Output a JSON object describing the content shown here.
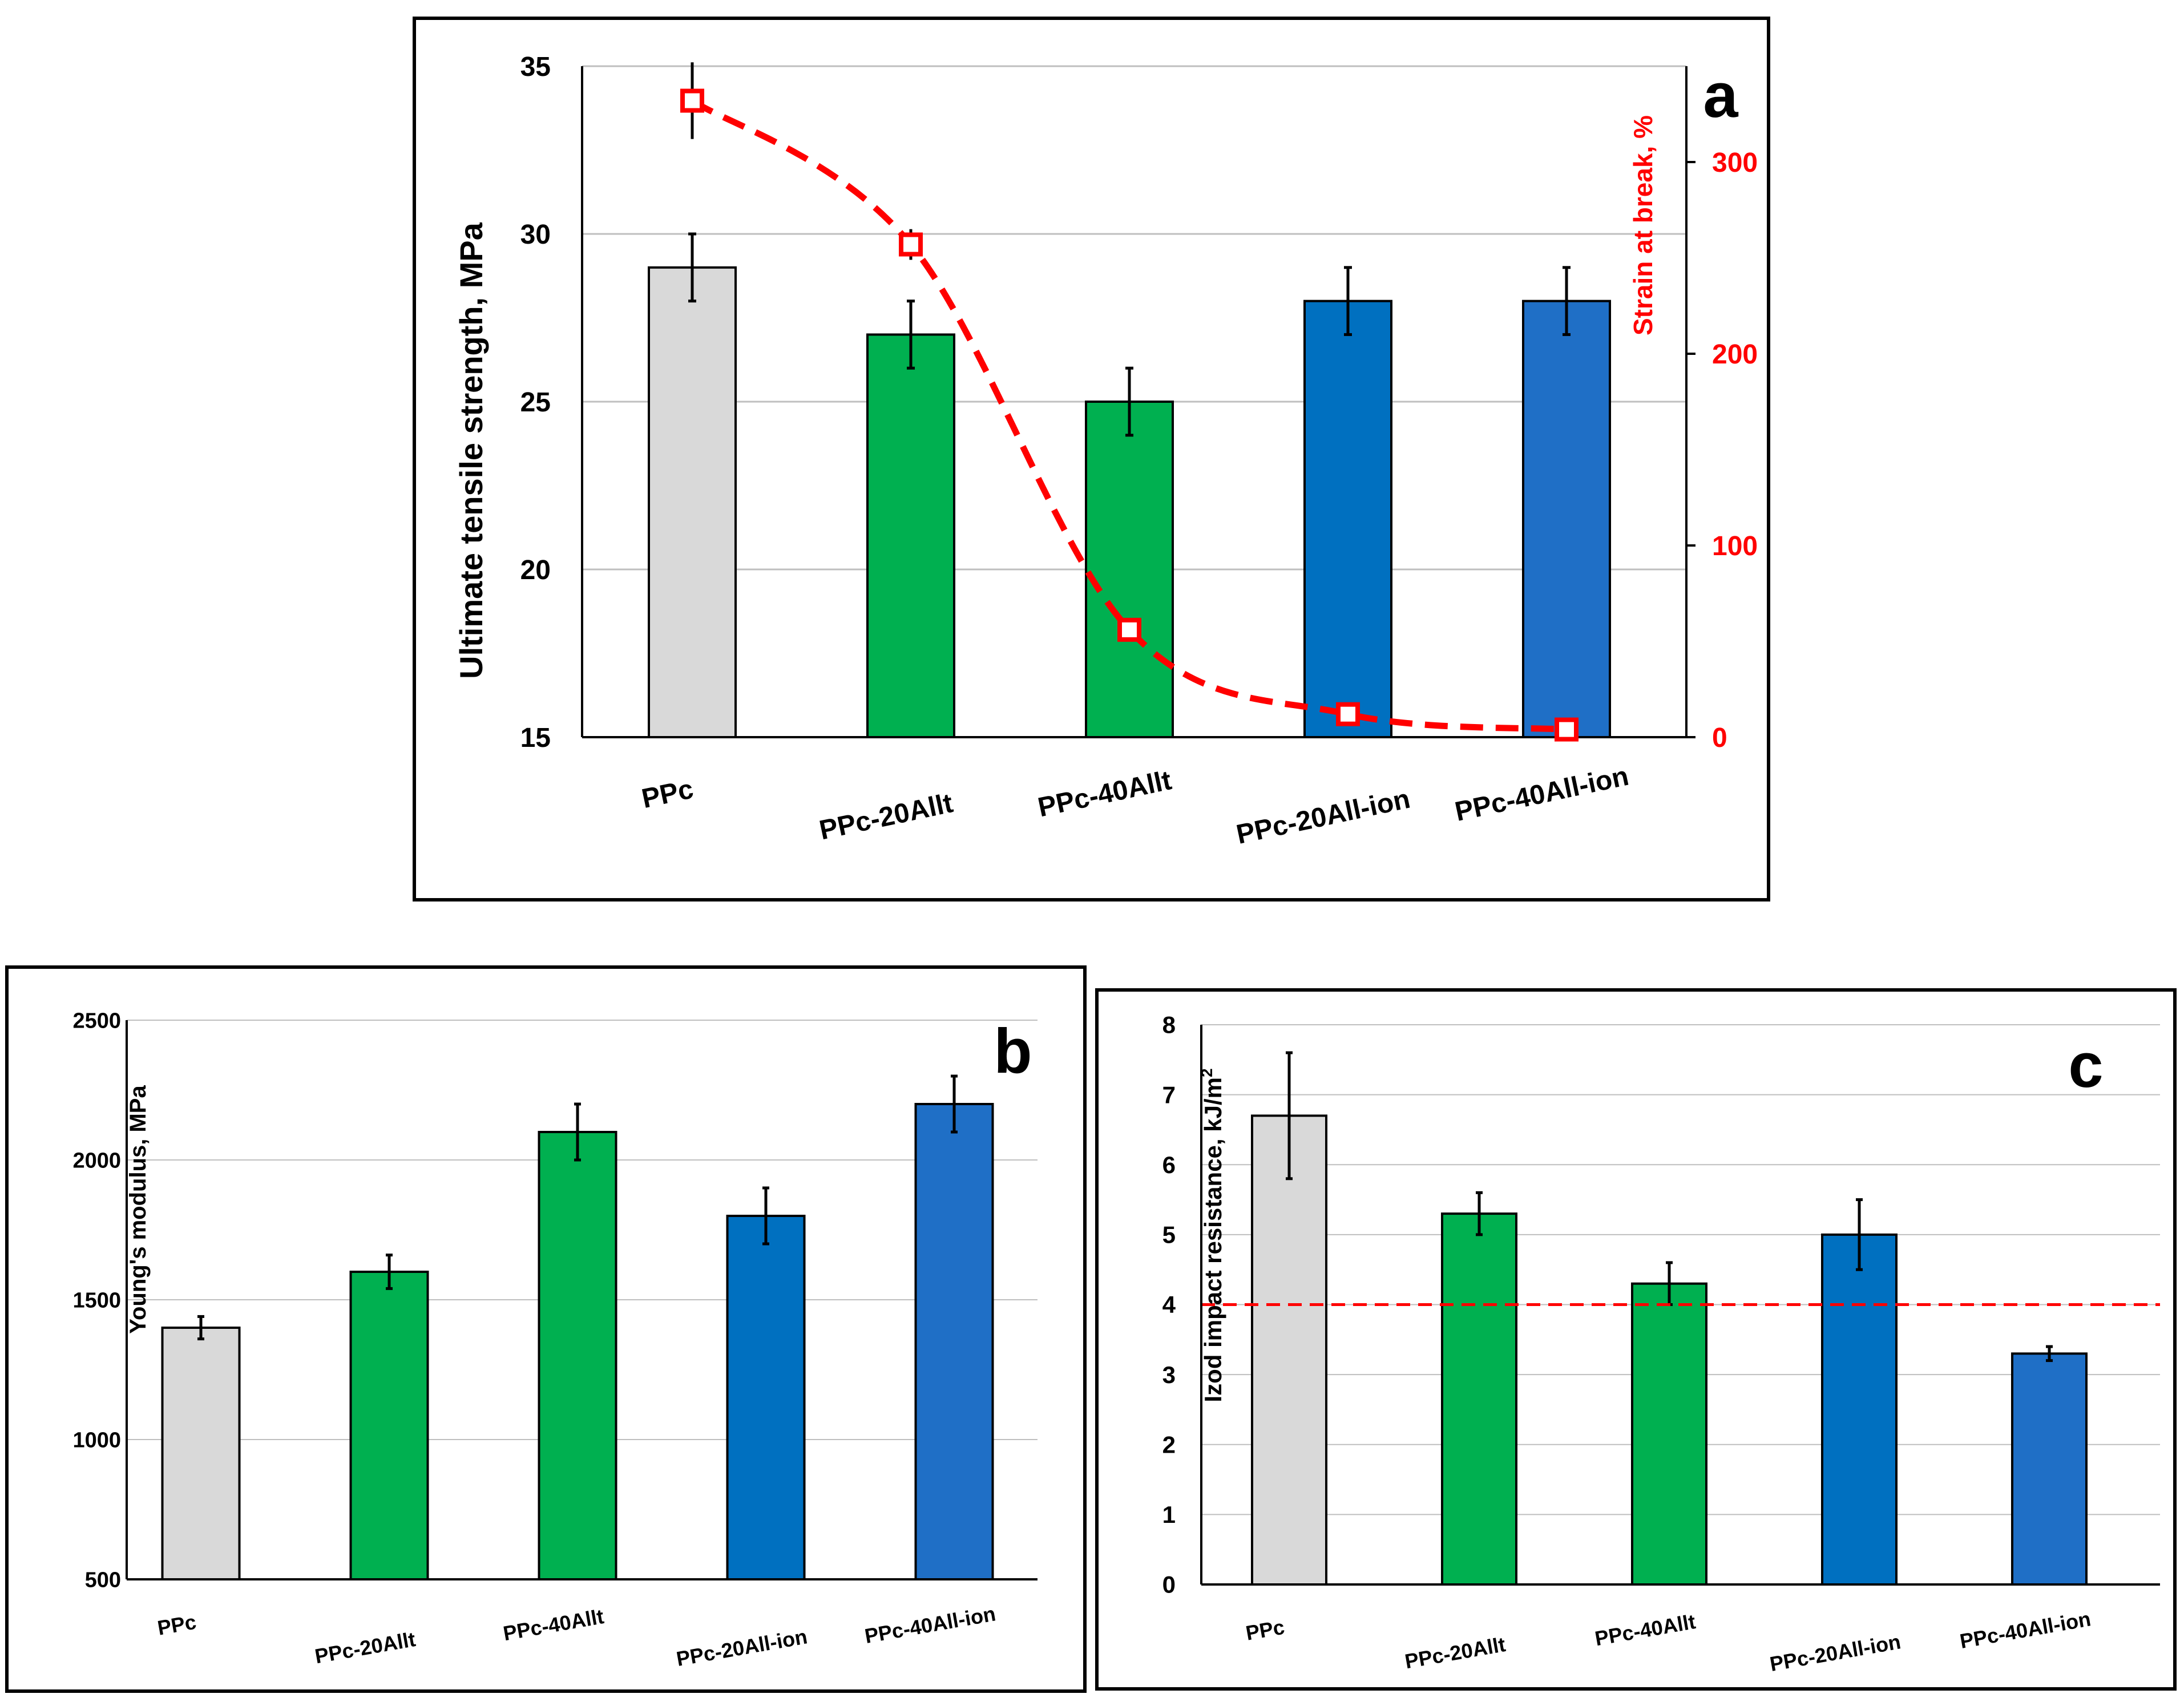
{
  "chart_data": [
    {
      "panel": "a",
      "type": "bar",
      "categories": [
        "PPc",
        "PPc-20Allt",
        "PPc-40Allt",
        "PPc-20All-ion",
        "PPc-40All-ion"
      ],
      "series": [
        {
          "name": "Ultimate tensile strength",
          "axis": "left",
          "values": [
            29,
            27,
            25,
            28,
            28
          ],
          "errors": [
            1,
            1,
            1,
            1,
            1
          ]
        },
        {
          "name": "Strain at break",
          "axis": "right",
          "type": "line",
          "style": "dashed",
          "values": [
            332,
            257,
            56,
            12,
            4
          ],
          "errors": [
            20,
            8,
            0,
            0,
            0
          ]
        }
      ],
      "bar_colors": [
        "#d9d9d9",
        "#00b050",
        "#00b050",
        "#0070c0",
        "#1f6fc6"
      ],
      "line_color": "#ff0000",
      "ylabel": "Ultimate tensile strength, MPa",
      "y2label": "Strain at break, %",
      "ylim": [
        15,
        35
      ],
      "yticks": [
        "15",
        "20",
        "25",
        "30",
        "35"
      ],
      "y2lim": [
        0,
        350
      ],
      "y2ticks": [
        "0",
        "100",
        "200",
        "300"
      ],
      "grid": true,
      "title": ""
    },
    {
      "panel": "b",
      "type": "bar",
      "categories": [
        "PPc",
        "PPc-20Allt",
        "PPc-40Allt",
        "PPc-20All-ion",
        "PPc-40All-ion"
      ],
      "values": [
        1400,
        1600,
        2100,
        1800,
        2200
      ],
      "errors": [
        40,
        60,
        100,
        100,
        100
      ],
      "bar_colors": [
        "#d9d9d9",
        "#00b050",
        "#00b050",
        "#0070c0",
        "#1f6fc6"
      ],
      "ylabel": "Young's modulus, MPa",
      "ylim": [
        500,
        2500
      ],
      "yticks": [
        "500",
        "1000",
        "1500",
        "2000",
        "2500"
      ],
      "grid": true,
      "title": ""
    },
    {
      "panel": "c",
      "type": "bar",
      "categories": [
        "PPc",
        "PPc-20Allt",
        "PPc-40Allt",
        "PPc-20All-ion",
        "PPc-40All-ion"
      ],
      "values": [
        6.7,
        5.3,
        4.3,
        5.0,
        3.3
      ],
      "errors": [
        0.9,
        0.3,
        0.3,
        0.5,
        0.1
      ],
      "bar_colors": [
        "#d9d9d9",
        "#00b050",
        "#00b050",
        "#0070c0",
        "#1f6fc6"
      ],
      "ylabel_main": "Izod impact resistance, kJ/m",
      "ylabel_sup": "2",
      "ylim": [
        0,
        8
      ],
      "yticks": [
        "0",
        "1",
        "2",
        "3",
        "4",
        "5",
        "6",
        "7",
        "8"
      ],
      "reference_line": 4,
      "reference_color": "#ff0000",
      "grid": true,
      "title": ""
    }
  ],
  "panel_labels": {
    "a": "a",
    "b": "b",
    "c": "c"
  }
}
